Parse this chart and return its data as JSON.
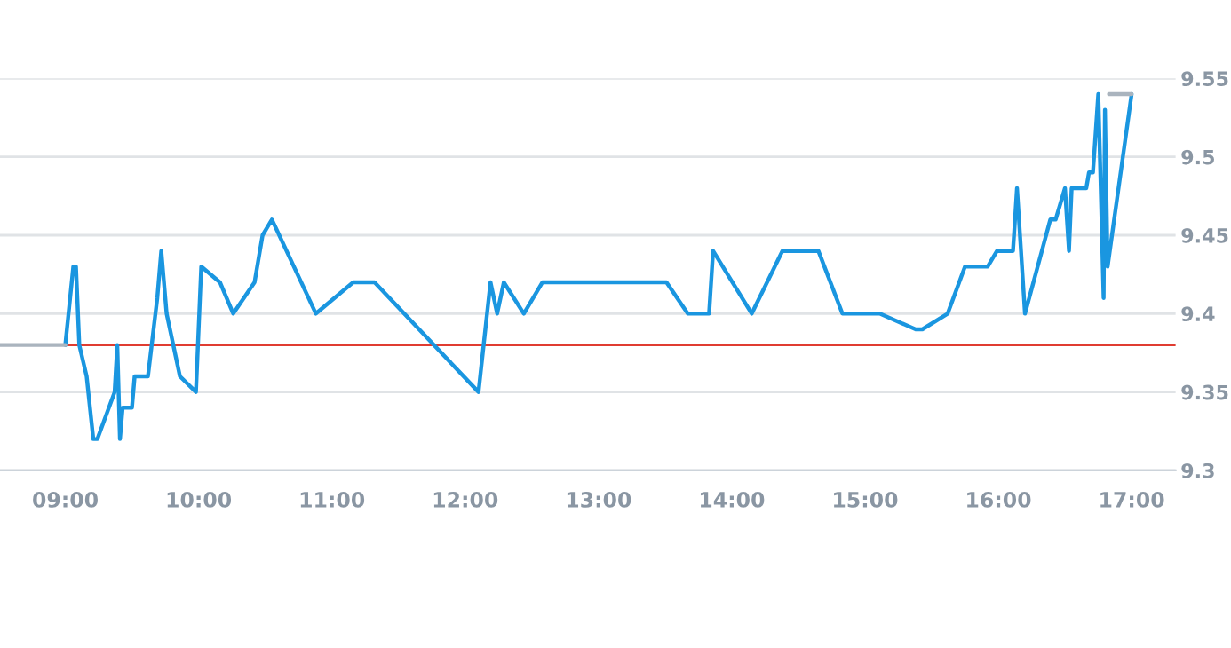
{
  "chart_data": {
    "type": "line",
    "series": [
      {
        "color": "#1a96e0",
        "x": [
          9.0,
          9.06,
          9.08,
          9.105,
          9.16,
          9.21,
          9.24,
          9.37,
          9.39,
          9.41,
          9.43,
          9.5,
          9.52,
          9.62,
          9.69,
          9.72,
          9.76,
          9.86,
          9.98,
          10.02,
          10.16,
          10.26,
          10.42,
          10.48,
          10.55,
          10.88,
          11.16,
          11.32,
          12.1,
          12.19,
          12.24,
          12.29,
          12.44,
          12.58,
          13.51,
          13.67,
          13.83,
          13.86,
          14.15,
          14.38,
          14.65,
          14.83,
          15.11,
          15.38,
          15.43,
          15.62,
          15.75,
          15.92,
          15.99,
          16.11,
          16.14,
          16.2,
          16.39,
          16.43,
          16.5,
          16.53,
          16.55,
          16.66,
          16.68,
          16.71,
          16.75,
          16.79,
          16.8,
          16.82,
          17.0
        ],
        "values": [
          9.38,
          9.43,
          9.43,
          9.38,
          9.36,
          9.32,
          9.32,
          9.35,
          9.38,
          9.32,
          9.34,
          9.34,
          9.36,
          9.36,
          9.41,
          9.44,
          9.4,
          9.36,
          9.35,
          9.43,
          9.42,
          9.4,
          9.42,
          9.45,
          9.46,
          9.4,
          9.42,
          9.42,
          9.35,
          9.42,
          9.4,
          9.42,
          9.4,
          9.42,
          9.42,
          9.4,
          9.4,
          9.44,
          9.4,
          9.44,
          9.44,
          9.4,
          9.4,
          9.39,
          9.39,
          9.4,
          9.43,
          9.43,
          9.44,
          9.44,
          9.48,
          9.4,
          9.46,
          9.46,
          9.48,
          9.44,
          9.48,
          9.48,
          9.49,
          9.49,
          9.54,
          9.41,
          9.53,
          9.43,
          9.54
        ]
      },
      {
        "color": "#aab4be",
        "x": [
          8.51,
          9.0
        ],
        "values": [
          9.38,
          9.38
        ]
      },
      {
        "color": "#aab4be",
        "x": [
          16.83,
          17.0
        ],
        "values": [
          9.54,
          9.54
        ]
      }
    ],
    "ref_lines": [
      {
        "axis": "y",
        "value": 9.38,
        "color": "#e03c31"
      }
    ],
    "xlim": [
      8.51,
      17.33
    ],
    "xticks": [
      {
        "value": 9,
        "label": "09:00"
      },
      {
        "value": 10,
        "label": "10:00"
      },
      {
        "value": 11,
        "label": "11:00"
      },
      {
        "value": 12,
        "label": "12:00"
      },
      {
        "value": 13,
        "label": "13:00"
      },
      {
        "value": 14,
        "label": "14:00"
      },
      {
        "value": 15,
        "label": "15:00"
      },
      {
        "value": 16,
        "label": "16:00"
      },
      {
        "value": 17,
        "label": "17:00"
      }
    ],
    "ylim": [
      9.3,
      9.55
    ],
    "yticks": [
      9.3,
      9.35,
      9.4,
      9.45,
      9.5,
      9.55
    ],
    "grid": "y",
    "marker": "none",
    "line_style": "solid"
  }
}
